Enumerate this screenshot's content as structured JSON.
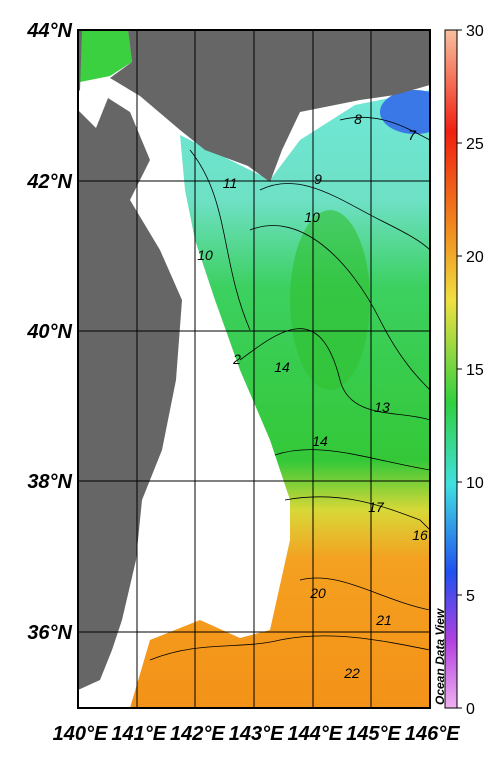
{
  "map": {
    "lat_labels": [
      "44°N",
      "42°N",
      "40°N",
      "38°N",
      "36°N"
    ],
    "lon_labels": [
      "140°E",
      "141°E",
      "142°E",
      "143°E",
      "144°E",
      "145°E",
      "146°E"
    ],
    "colorbar": {
      "ticks": [
        30,
        25,
        20,
        15,
        10,
        5,
        0
      ],
      "range": [
        0,
        30
      ]
    },
    "contour_labels": [
      "8",
      "7",
      "9",
      "11",
      "10",
      "10",
      "2",
      "14",
      "13",
      "14",
      "17",
      "16",
      "20",
      "21",
      "22"
    ],
    "watermark": "Ocean Data View"
  }
}
